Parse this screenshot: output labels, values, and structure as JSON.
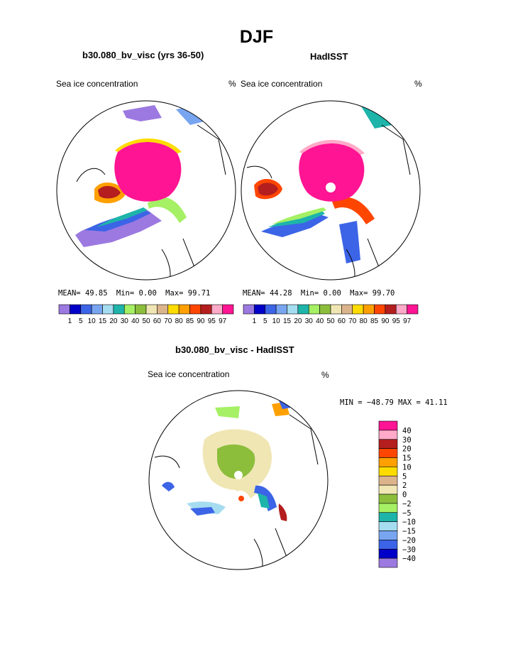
{
  "title": "DJF",
  "panels": [
    {
      "subtitle": "b30.080_bv_visc (yrs 36-50)",
      "variable": "Sea ice concentration",
      "units": "%",
      "stats": {
        "mean_label": "MEAN=",
        "mean": "49.85",
        "min_label": "Min=",
        "min": "0.00",
        "max_label": "Max=",
        "max": "99.71"
      }
    },
    {
      "subtitle": "HadISST",
      "variable": "Sea ice concentration",
      "units": "%",
      "stats": {
        "mean_label": "MEAN=",
        "mean": "44.28",
        "min_label": "Min=",
        "min": "0.00",
        "max_label": "Max=",
        "max": "99.70"
      }
    }
  ],
  "difference": {
    "subtitle": "b30.080_bv_visc - HadISST",
    "variable": "Sea ice concentration",
    "units": "%",
    "minmax": "MIN = −48.79 MAX =   41.11"
  },
  "chart_data": [
    {
      "type": "heatmap",
      "title": "b30.080_bv_visc (yrs 36-50)",
      "variable": "Sea ice concentration (%)",
      "projection": "north polar stereographic",
      "colorbar_levels": [
        "1",
        "5",
        "10",
        "15",
        "20",
        "30",
        "40",
        "50",
        "60",
        "70",
        "80",
        "85",
        "90",
        "95",
        "97"
      ],
      "stats": {
        "mean": 49.85,
        "min": 0.0,
        "max": 99.71
      }
    },
    {
      "type": "heatmap",
      "title": "HadISST",
      "variable": "Sea ice concentration (%)",
      "projection": "north polar stereographic",
      "colorbar_levels": [
        "1",
        "5",
        "10",
        "15",
        "20",
        "30",
        "40",
        "50",
        "60",
        "70",
        "80",
        "85",
        "90",
        "95",
        "97"
      ],
      "stats": {
        "mean": 44.28,
        "min": 0.0,
        "max": 99.7
      }
    },
    {
      "type": "heatmap",
      "title": "b30.080_bv_visc - HadISST",
      "variable": "Sea ice concentration difference (%)",
      "projection": "north polar stereographic",
      "colorbar_levels": [
        "40",
        "30",
        "20",
        "15",
        "10",
        "5",
        "2",
        "0",
        "−2",
        "−5",
        "−10",
        "−15",
        "−20",
        "−30",
        "−40"
      ],
      "stats": {
        "min": -48.79,
        "max": 41.11
      }
    }
  ],
  "colors": {
    "abs_scale": [
      "#9c79e0",
      "#0000c8",
      "#3c64e6",
      "#78a5f0",
      "#a5dcf0",
      "#1eb4aa",
      "#a5f064",
      "#8cbe3c",
      "#f0e6b4",
      "#dcb48c",
      "#ffdc00",
      "#ffa000",
      "#ff4600",
      "#b41e1e",
      "#ffaac8",
      "#ff1493"
    ],
    "diff_scale": [
      "#ff1493",
      "#ffaac8",
      "#b41e1e",
      "#ff4600",
      "#ffa000",
      "#ffdc00",
      "#dcb48c",
      "#f0e6b4",
      "#8cbe3c",
      "#a5f064",
      "#1eb4aa",
      "#a5dcf0",
      "#78a5f0",
      "#3c64e6",
      "#0000c8",
      "#9c79e0"
    ]
  }
}
